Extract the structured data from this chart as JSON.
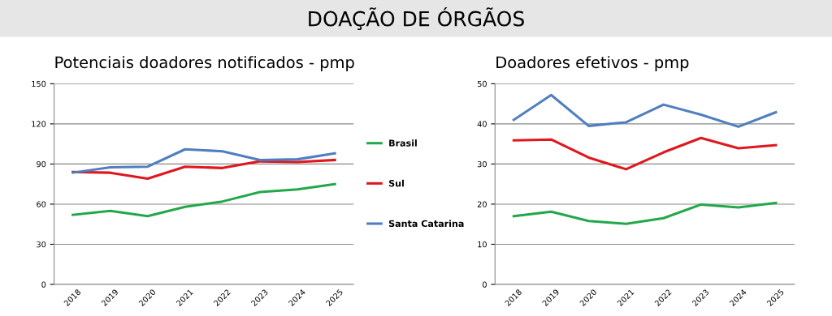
{
  "chart_data": [
    {
      "type": "line",
      "title": "Potenciais doadores notificados - pmp",
      "annotations": [
        "DOAÇÃO DE ÓRGÃOS"
      ],
      "categories": [
        "2018",
        "2019",
        "2020",
        "2021",
        "2022",
        "2023",
        "2024",
        "2025"
      ],
      "series": [
        {
          "name": "Brasil",
          "color": "#22a84a",
          "values": [
            52,
            55,
            51,
            58,
            62,
            69,
            71,
            75
          ]
        },
        {
          "name": "Sul",
          "color": "#e0171e",
          "values": [
            84,
            83.5,
            79,
            88,
            87,
            92,
            91.5,
            93
          ]
        },
        {
          "name": "Santa Catarina",
          "color": "#4f7fbf",
          "values": [
            83.5,
            87.5,
            88,
            101,
            99.5,
            93,
            93.5,
            98
          ]
        }
      ],
      "ylim": [
        0,
        150
      ],
      "yticks": [
        0,
        30,
        60,
        90,
        120,
        150
      ],
      "grid": "y",
      "legend": "right",
      "marker": "none",
      "line_style": "solid"
    },
    {
      "type": "line",
      "title": "Doadores efetivos - pmp",
      "categories": [
        "2018",
        "2019",
        "2020",
        "2021",
        "2022",
        "2023",
        "2024",
        "2025"
      ],
      "series": [
        {
          "color": "#22a84a",
          "values": [
            17,
            18.1,
            15.8,
            15.1,
            16.5,
            19.9,
            19.2,
            20.3
          ]
        },
        {
          "color": "#e0171e",
          "values": [
            35.9,
            36.1,
            31.6,
            28.7,
            32.9,
            36.5,
            33.9,
            34.7
          ]
        },
        {
          "color": "#4f7fbf",
          "values": [
            41,
            47.2,
            39.5,
            40.4,
            44.8,
            42.3,
            39.3,
            42.9
          ]
        }
      ],
      "ylim": [
        0,
        50
      ],
      "yticks": [
        0,
        10,
        20,
        30,
        40,
        50
      ],
      "grid": "y",
      "marker": "none",
      "line_style": "solid"
    }
  ]
}
